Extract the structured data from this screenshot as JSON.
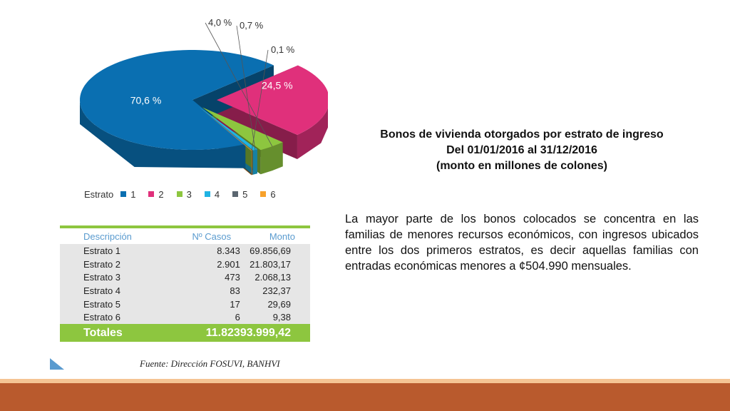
{
  "chart_data": {
    "type": "pie",
    "categories": [
      "1",
      "2",
      "3",
      "4",
      "5",
      "6"
    ],
    "values": [
      70.6,
      24.5,
      4.0,
      0.7,
      0.1,
      0.1
    ],
    "labels": [
      "70,6 %",
      "24,5 %",
      "4,0 %",
      "0,7 %",
      "",
      "0,1 %"
    ],
    "colors": [
      "#0a6fb1",
      "#e0307b",
      "#8dc63f",
      "#20b3e3",
      "#5b6670",
      "#f7a12b"
    ],
    "legend": {
      "title": "Estrato",
      "placement": "bottom-left"
    }
  },
  "table": {
    "headers": [
      "Descripción",
      "Nº Casos",
      "Monto"
    ],
    "rows": [
      [
        "Estrato 1",
        "8.343",
        "69.856,69"
      ],
      [
        "Estrato 2",
        "2.901",
        "21.803,17"
      ],
      [
        "Estrato 3",
        "473",
        "2.068,13"
      ],
      [
        "Estrato 4",
        "83",
        "232,37"
      ],
      [
        "Estrato 5",
        "17",
        "29,69"
      ],
      [
        "Estrato 6",
        "6",
        "9,38"
      ]
    ],
    "totals": [
      "Totales",
      "11.823",
      "93.999,42"
    ]
  },
  "source": "Fuente: Dirección FOSUVI, BANHVI",
  "title_lines": [
    "Bonos de vivienda otorgados por estrato de ingreso",
    "Del 01/01/2016 al 31/12/2016",
    "(monto en millones de colones)"
  ],
  "body_text": "La mayor parte de los bonos colocados se concentra en las familias de menores recursos económicos, con ingresos ubicados entre los dos primeros estratos, es decir aquellas familias con entradas económicas menores a ¢504.990 mensuales.",
  "colors": {
    "accent_green": "#8dc63f",
    "header_blue": "#5a9bcf",
    "footer_bar": "#b95a2d",
    "footer_line": "#f5c493"
  }
}
